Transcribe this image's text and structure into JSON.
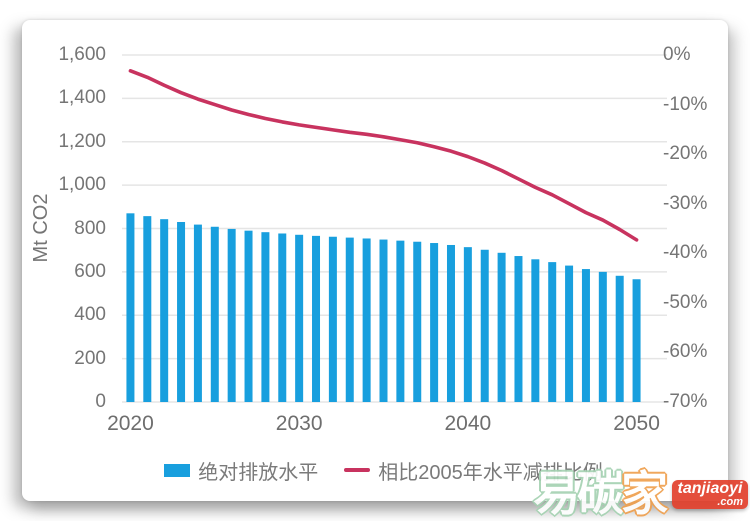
{
  "chart_data": {
    "type": "bar",
    "title": "",
    "x": [
      2020,
      2021,
      2022,
      2023,
      2024,
      2025,
      2026,
      2027,
      2028,
      2029,
      2030,
      2031,
      2032,
      2033,
      2034,
      2035,
      2036,
      2037,
      2038,
      2039,
      2040,
      2041,
      2042,
      2043,
      2044,
      2045,
      2046,
      2047,
      2048,
      2049,
      2050
    ],
    "series": [
      {
        "name": "绝对排放水平",
        "type": "bar",
        "axis": "left",
        "values": [
          870,
          857,
          843,
          830,
          818,
          808,
          798,
          790,
          783,
          777,
          771,
          766,
          762,
          758,
          754,
          749,
          744,
          739,
          733,
          724,
          714,
          702,
          688,
          673,
          658,
          645,
          629,
          613,
          600,
          582,
          566
        ]
      },
      {
        "name": "相比2005年水平减排比例",
        "type": "line",
        "axis": "right",
        "values": [
          -3.2,
          -4.5,
          -6.1,
          -7.6,
          -8.9,
          -10.0,
          -11.1,
          -12.0,
          -12.8,
          -13.5,
          -14.1,
          -14.6,
          -15.1,
          -15.6,
          -16.0,
          -16.5,
          -17.1,
          -17.7,
          -18.5,
          -19.4,
          -20.5,
          -21.8,
          -23.3,
          -25.0,
          -26.7,
          -28.2,
          -30.0,
          -31.8,
          -33.3,
          -35.2,
          -37.3
        ]
      }
    ],
    "left_axis": {
      "title": "Mt CO2",
      "min": 0,
      "max": 1600,
      "tick_labels": [
        "1,600",
        "1,400",
        "1,200",
        "1,000",
        "800",
        "600",
        "400",
        "200",
        "0"
      ]
    },
    "right_axis": {
      "min": -70,
      "max": 0,
      "tick_labels": [
        "0%",
        "-10%",
        "-20%",
        "-30%",
        "-40%",
        "-50%",
        "-60%",
        "-70%"
      ]
    },
    "x_axis": {
      "tick_labels": [
        "2020",
        "2030",
        "2040",
        "2050"
      ],
      "tick_positions": [
        0,
        10,
        20,
        30
      ]
    },
    "grid": true,
    "legend_position": "bottom",
    "colors": {
      "bar": "#189fde",
      "line": "#c8335f",
      "grid": "#e5e5e5",
      "tick_text": "#757575"
    }
  },
  "axis": {
    "left_title": "Mt CO2"
  },
  "legend": {
    "bar_label": "绝对排放水平",
    "line_label": "相比2005年水平减排比例"
  },
  "watermark": {
    "char1": "易",
    "char2": "碳",
    "char3": "家",
    "badge_main": "tanjiaoyi",
    "badge_sub": ".com",
    "green": "#a5d2b2",
    "orange": "#efa04f",
    "badge_bg": "#e2402c"
  }
}
